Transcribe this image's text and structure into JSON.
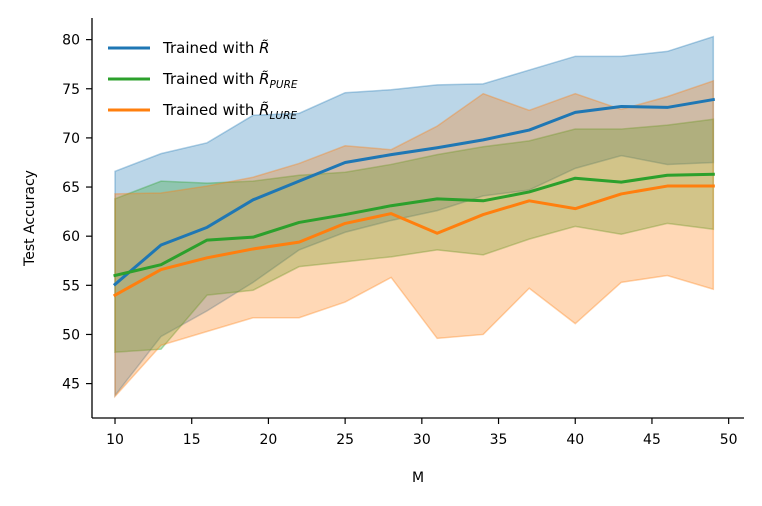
{
  "chart_data": {
    "type": "line",
    "title": "",
    "xlabel": "M",
    "ylabel": "Test Accuracy",
    "xlim": [
      8.5,
      51
    ],
    "ylim": [
      41.5,
      82.2
    ],
    "xticks": [
      10,
      15,
      20,
      25,
      30,
      35,
      40,
      45,
      50
    ],
    "yticks": [
      45,
      50,
      55,
      60,
      65,
      70,
      75,
      80
    ],
    "x": [
      10,
      13,
      16,
      19,
      22,
      25,
      28,
      31,
      34,
      37,
      40,
      43,
      46,
      49
    ],
    "legend_position": "top-left",
    "series": [
      {
        "name": "Trained with R̃",
        "legend_base": "Trained with ",
        "legend_symbol": "R̃",
        "legend_sub": "",
        "color": "#1f77b4",
        "values": [
          55.1,
          59.1,
          60.9,
          63.7,
          65.6,
          67.5,
          68.3,
          69.0,
          69.8,
          70.8,
          72.6,
          73.2,
          73.1,
          73.9
        ],
        "upper": [
          66.6,
          68.4,
          69.5,
          72.3,
          72.5,
          74.6,
          74.9,
          75.4,
          75.5,
          76.9,
          78.3,
          78.3,
          78.8,
          80.3
        ],
        "lower": [
          43.8,
          49.8,
          52.4,
          55.3,
          58.6,
          60.4,
          61.6,
          62.6,
          64.1,
          64.7,
          66.9,
          68.2,
          67.3,
          67.5
        ]
      },
      {
        "name": "Trained with R̃_PURE",
        "legend_base": "Trained with ",
        "legend_symbol": "R̃",
        "legend_sub": "PURE",
        "color": "#2ca02c",
        "values": [
          56.0,
          57.1,
          59.6,
          59.9,
          61.4,
          62.2,
          63.1,
          63.8,
          63.6,
          64.5,
          65.9,
          65.5,
          66.2,
          66.3
        ],
        "upper": [
          63.8,
          65.6,
          65.4,
          65.6,
          66.2,
          66.5,
          67.3,
          68.3,
          69.1,
          69.7,
          70.9,
          70.9,
          71.3,
          71.9
        ],
        "lower": [
          48.2,
          48.5,
          54.0,
          54.5,
          56.9,
          57.4,
          57.9,
          58.6,
          58.1,
          59.7,
          61.0,
          60.2,
          61.3,
          60.7
        ]
      },
      {
        "name": "Trained with R̃_LURE",
        "legend_base": "Trained with ",
        "legend_symbol": "R̃",
        "legend_sub": "LURE",
        "color": "#ff7f0e",
        "values": [
          54.0,
          56.6,
          57.8,
          58.7,
          59.4,
          61.3,
          62.3,
          60.3,
          62.2,
          63.6,
          62.8,
          64.3,
          65.1,
          65.1
        ],
        "upper": [
          64.3,
          64.4,
          65.1,
          66.0,
          67.4,
          69.2,
          68.8,
          71.2,
          74.5,
          72.8,
          74.5,
          72.9,
          74.2,
          75.8
        ],
        "lower": [
          43.7,
          48.9,
          50.3,
          51.7,
          51.7,
          53.3,
          55.8,
          49.6,
          50.0,
          54.7,
          51.1,
          55.3,
          56.0,
          54.6
        ]
      }
    ]
  }
}
